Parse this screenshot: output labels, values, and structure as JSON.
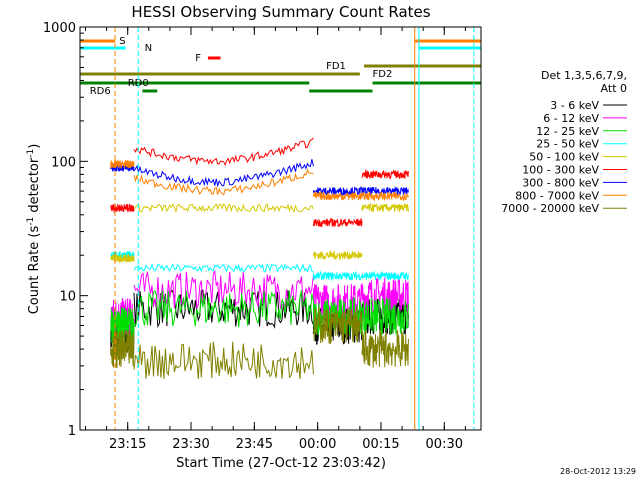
{
  "chart_data": {
    "type": "line",
    "title": "HESSI Observing Summary Count Rates",
    "xlabel": "Start Time (27-Oct-12 23:03:42)",
    "ylabel_prefix": "Count Rate (s",
    "ylabel_sup": "-1",
    "ylabel_suffix": " detector",
    "ylabel_sup2": "-1",
    "ylabel_end": ")",
    "y_scale": "log",
    "ylim": [
      1,
      1000
    ],
    "xlim": [
      "23:03:42",
      "00:38:42"
    ],
    "y_ticks": [
      "1",
      "10",
      "100",
      "1000"
    ],
    "x_ticks": [
      "23:15",
      "23:30",
      "23:45",
      "00:00",
      "00:15",
      "00:30"
    ],
    "legend_header": [
      "Det 1,3,5,6,7,9,",
      "Att 0"
    ],
    "legend_position": "right",
    "series": [
      {
        "name": "3 - 6 keV",
        "color": "#000000"
      },
      {
        "name": "6 - 12 keV",
        "color": "#ff00ff"
      },
      {
        "name": "12 - 25 keV",
        "color": "#00dd00"
      },
      {
        "name": "25 - 50 keV",
        "color": "#00ffff"
      },
      {
        "name": "50 - 100 keV",
        "color": "#d4c800"
      },
      {
        "name": "100 - 300 keV",
        "color": "#ff0000"
      },
      {
        "name": "300 - 800 keV",
        "color": "#0000ff"
      },
      {
        "name": "800 - 7000 keV",
        "color": "#ff8000"
      },
      {
        "name": "7000 - 20000 keV",
        "color": "#808000"
      }
    ],
    "annotations": {
      "s": "S",
      "n": "N",
      "f": "F",
      "fd1": "FD1",
      "fd2": "FD2",
      "rd0": "RD0",
      "rd6": "RD6"
    },
    "footer": "28-Oct-2012 13:29"
  }
}
